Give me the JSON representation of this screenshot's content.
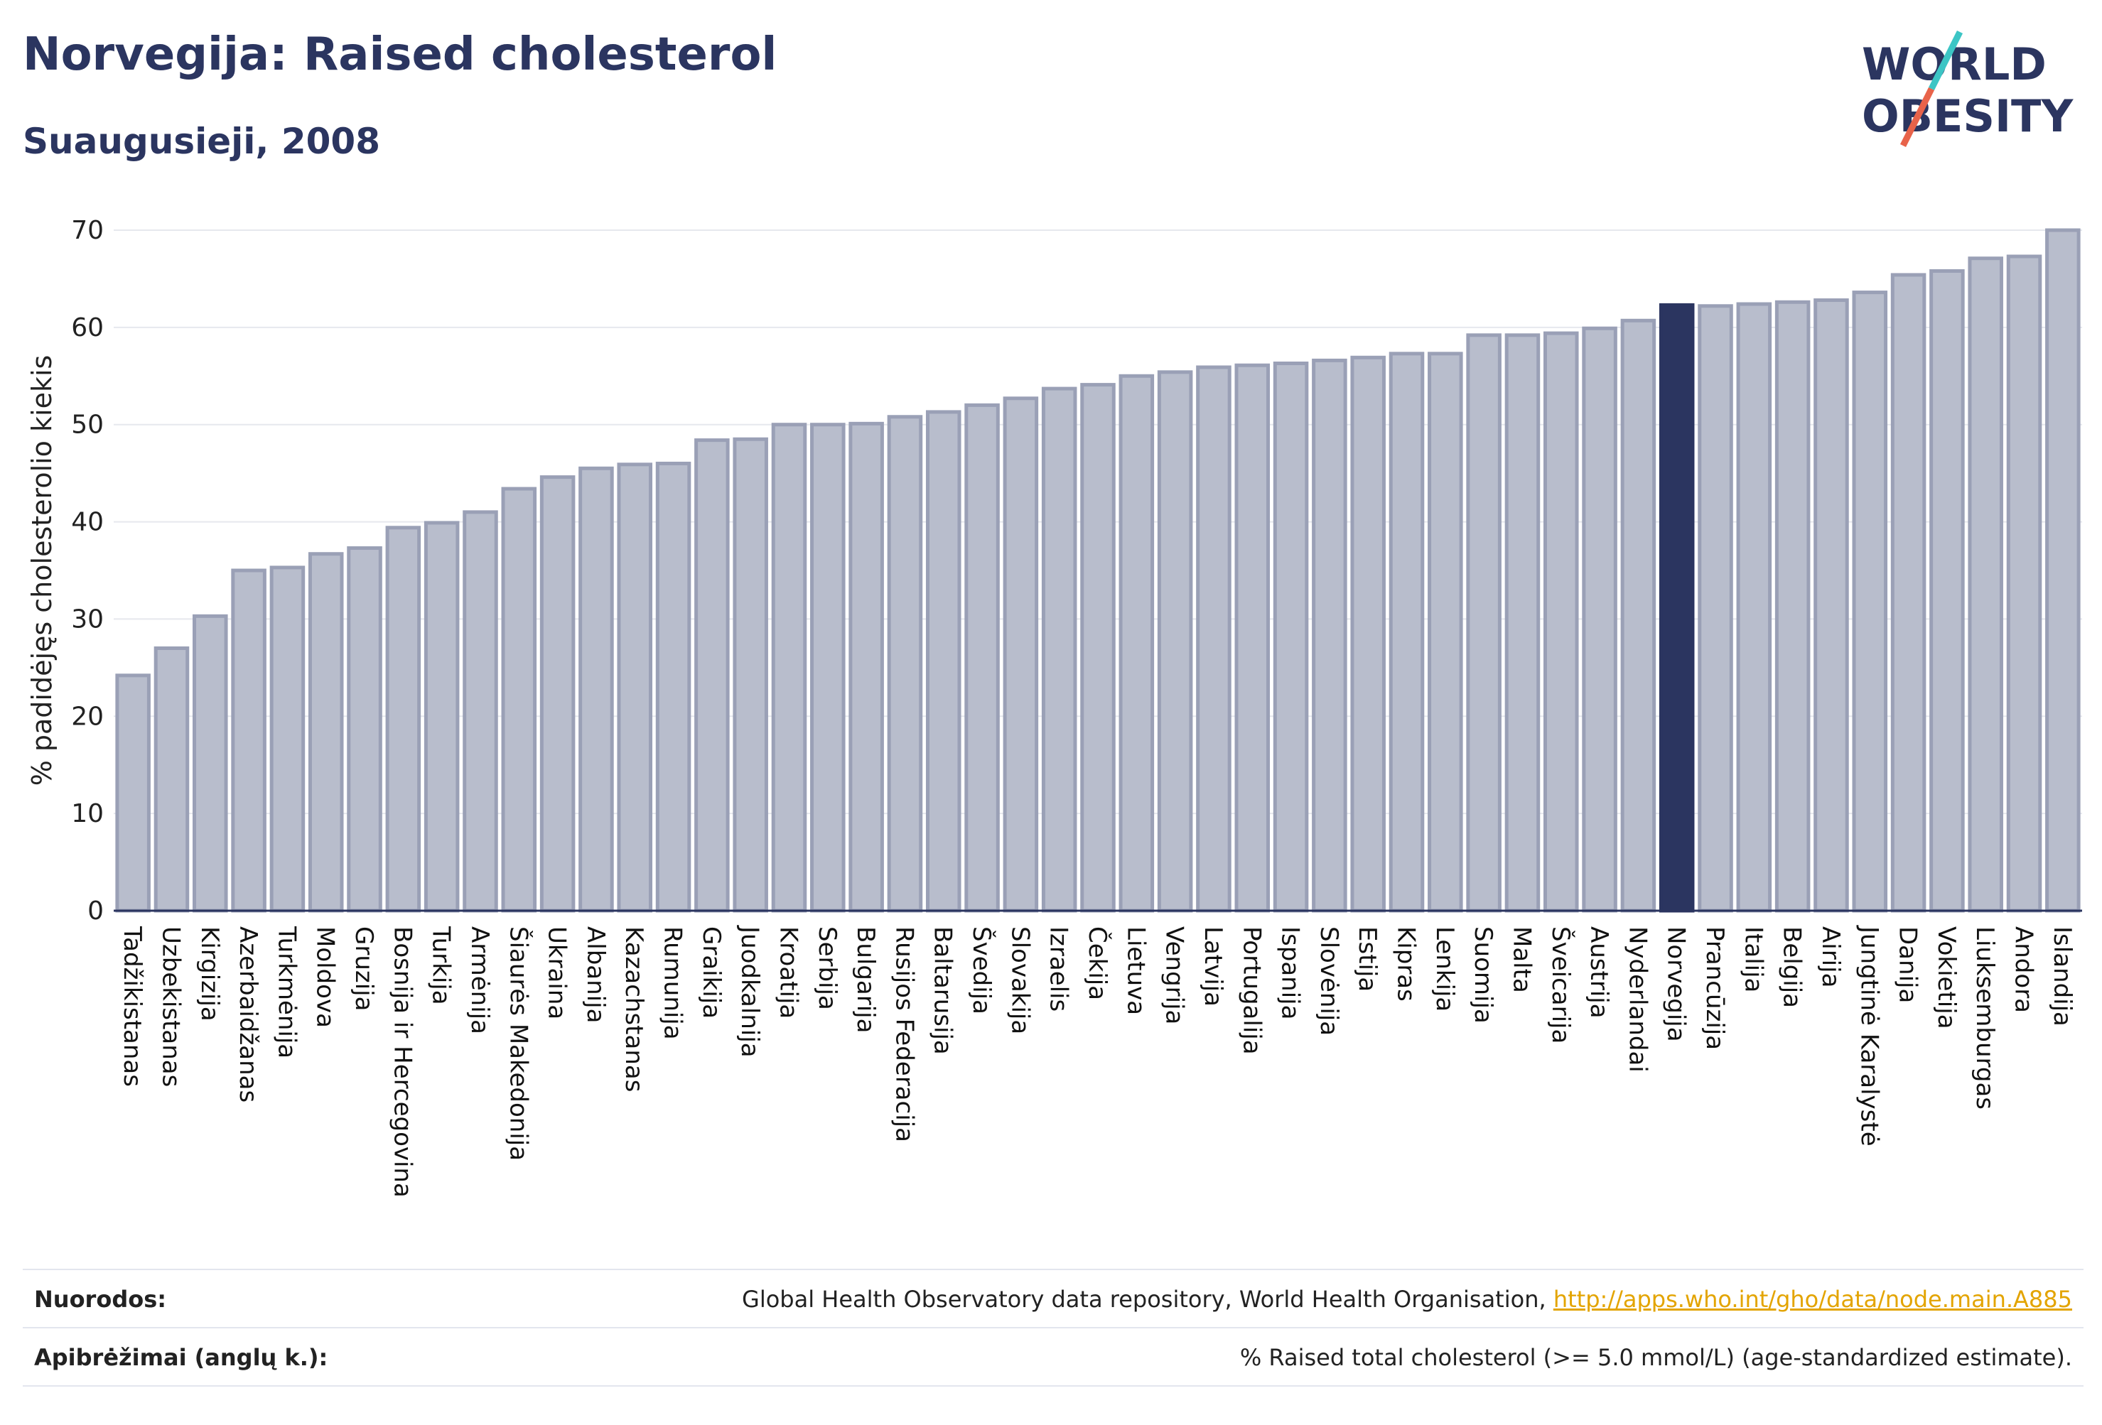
{
  "header": {
    "title": "Norvegija: Raised cholesterol",
    "subtitle": "Suaugusieji, 2008"
  },
  "logo": {
    "line1": "WORLD",
    "line2": "OBESITY",
    "accent_colors": [
      "#3cc5c5",
      "#e8634a"
    ]
  },
  "chart_data": {
    "type": "bar",
    "ylabel": "% padidėjęs cholesterolio kiekis",
    "xlabel": "",
    "ylim": [
      0,
      70
    ],
    "yticks": [
      0,
      10,
      20,
      30,
      40,
      50,
      60,
      70
    ],
    "highlight": "Norvegija",
    "colors": {
      "bar": "#b8bdcc",
      "bar_stroke": "#9aa0b6",
      "highlight": "#2b3560"
    },
    "categories": [
      "Tadžikistanas",
      "Uzbekistanas",
      "Kirgizija",
      "Azerbaidžanas",
      "Turkmėnija",
      "Moldova",
      "Gruzija",
      "Bosnija ir Hercegovina",
      "Turkija",
      "Armėnija",
      "Šiaurės Makedonija",
      "Ukraina",
      "Albanija",
      "Kazachstanas",
      "Rumunija",
      "Graikija",
      "Juodkalnija",
      "Kroatija",
      "Serbija",
      "Bulgarija",
      "Rusijos Federacija",
      "Baltarusija",
      "Švedija",
      "Slovakija",
      "Izraelis",
      "Čekija",
      "Lietuva",
      "Vengrija",
      "Latvija",
      "Portugalija",
      "Ispanija",
      "Slovėnija",
      "Estija",
      "Kipras",
      "Lenkija",
      "Suomija",
      "Malta",
      "Šveicarija",
      "Austrija",
      "Nyderlandai",
      "Norvegija",
      "Prancūzija",
      "Italija",
      "Belgija",
      "Airija",
      "Jungtinė Karalystė",
      "Danija",
      "Vokietija",
      "Liuksemburgas",
      "Andora",
      "Islandija"
    ],
    "values": [
      24.2,
      27.0,
      30.3,
      35.0,
      35.3,
      36.7,
      37.3,
      39.4,
      39.9,
      41.0,
      43.4,
      44.6,
      45.5,
      45.9,
      46.0,
      48.4,
      48.5,
      50.0,
      50.0,
      50.1,
      50.8,
      51.3,
      52.0,
      52.7,
      53.7,
      54.1,
      55.0,
      55.4,
      55.9,
      56.1,
      56.3,
      56.6,
      56.9,
      57.3,
      57.3,
      59.2,
      59.2,
      59.4,
      59.9,
      60.7,
      62.3,
      62.2,
      62.4,
      62.6,
      62.8,
      63.6,
      65.4,
      65.8,
      67.1,
      67.3,
      70.0
    ]
  },
  "footer": {
    "sources_label": "Nuorodos:",
    "sources_text": "Global Health Observatory data repository, World Health Organisation, ",
    "sources_link": "http://apps.who.int/gho/data/node.main.A885",
    "definitions_label": "Apibrėžimai (anglų k.):",
    "definitions_text": "% Raised total cholesterol (>= 5.0 mmol/L) (age-standardized estimate)."
  }
}
